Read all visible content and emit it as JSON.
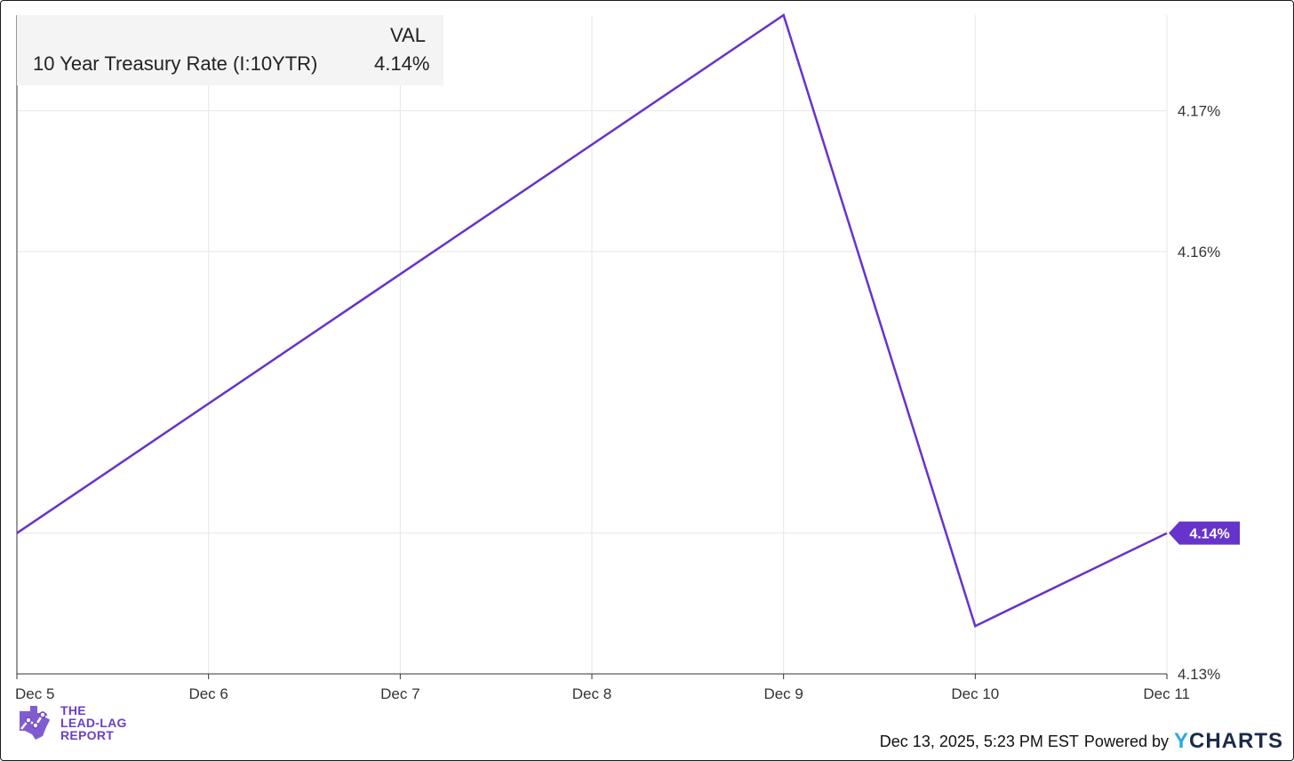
{
  "legend": {
    "header": "VAL",
    "series_name": "10 Year Treasury Rate (I:10YTR)",
    "series_value": "4.14%"
  },
  "colors": {
    "line": "#6633cc",
    "grid": "#e6e6e6",
    "axis": "#333333",
    "badge": "#6633cc"
  },
  "chart_data": {
    "type": "line",
    "x": [
      "Dec 5",
      "Dec 6",
      "Dec 7",
      "Dec 8",
      "Dec 9",
      "Dec 10",
      "Dec 11"
    ],
    "series": [
      {
        "name": "10 Year Treasury Rate (I:10YTR)",
        "points": [
          {
            "x": "Dec 5",
            "y": 4.14
          },
          {
            "x": "Dec 9",
            "y": 4.1768
          },
          {
            "x": "Dec 10",
            "y": 4.1334
          },
          {
            "x": "Dec 11",
            "y": 4.14
          }
        ]
      }
    ],
    "yticks": [
      {
        "value": 4.13,
        "label": "4.13%"
      },
      {
        "value": 4.14,
        "label": "4.14%"
      },
      {
        "value": 4.16,
        "label": "4.16%"
      },
      {
        "value": 4.17,
        "label": "4.17%"
      }
    ],
    "ylim": [
      4.13,
      4.1768
    ],
    "last_value_label": "4.14%",
    "grid": true,
    "legend_position": "top-left"
  },
  "branding": {
    "logo_line1": "THE",
    "logo_line2": "LEAD-LAG",
    "logo_line3": "REPORT",
    "timestamp": "Dec 13, 2025, 5:23 PM EST",
    "powered_by": "Powered by",
    "ycharts_y": "Y",
    "ycharts_rest": "CHARTS"
  }
}
